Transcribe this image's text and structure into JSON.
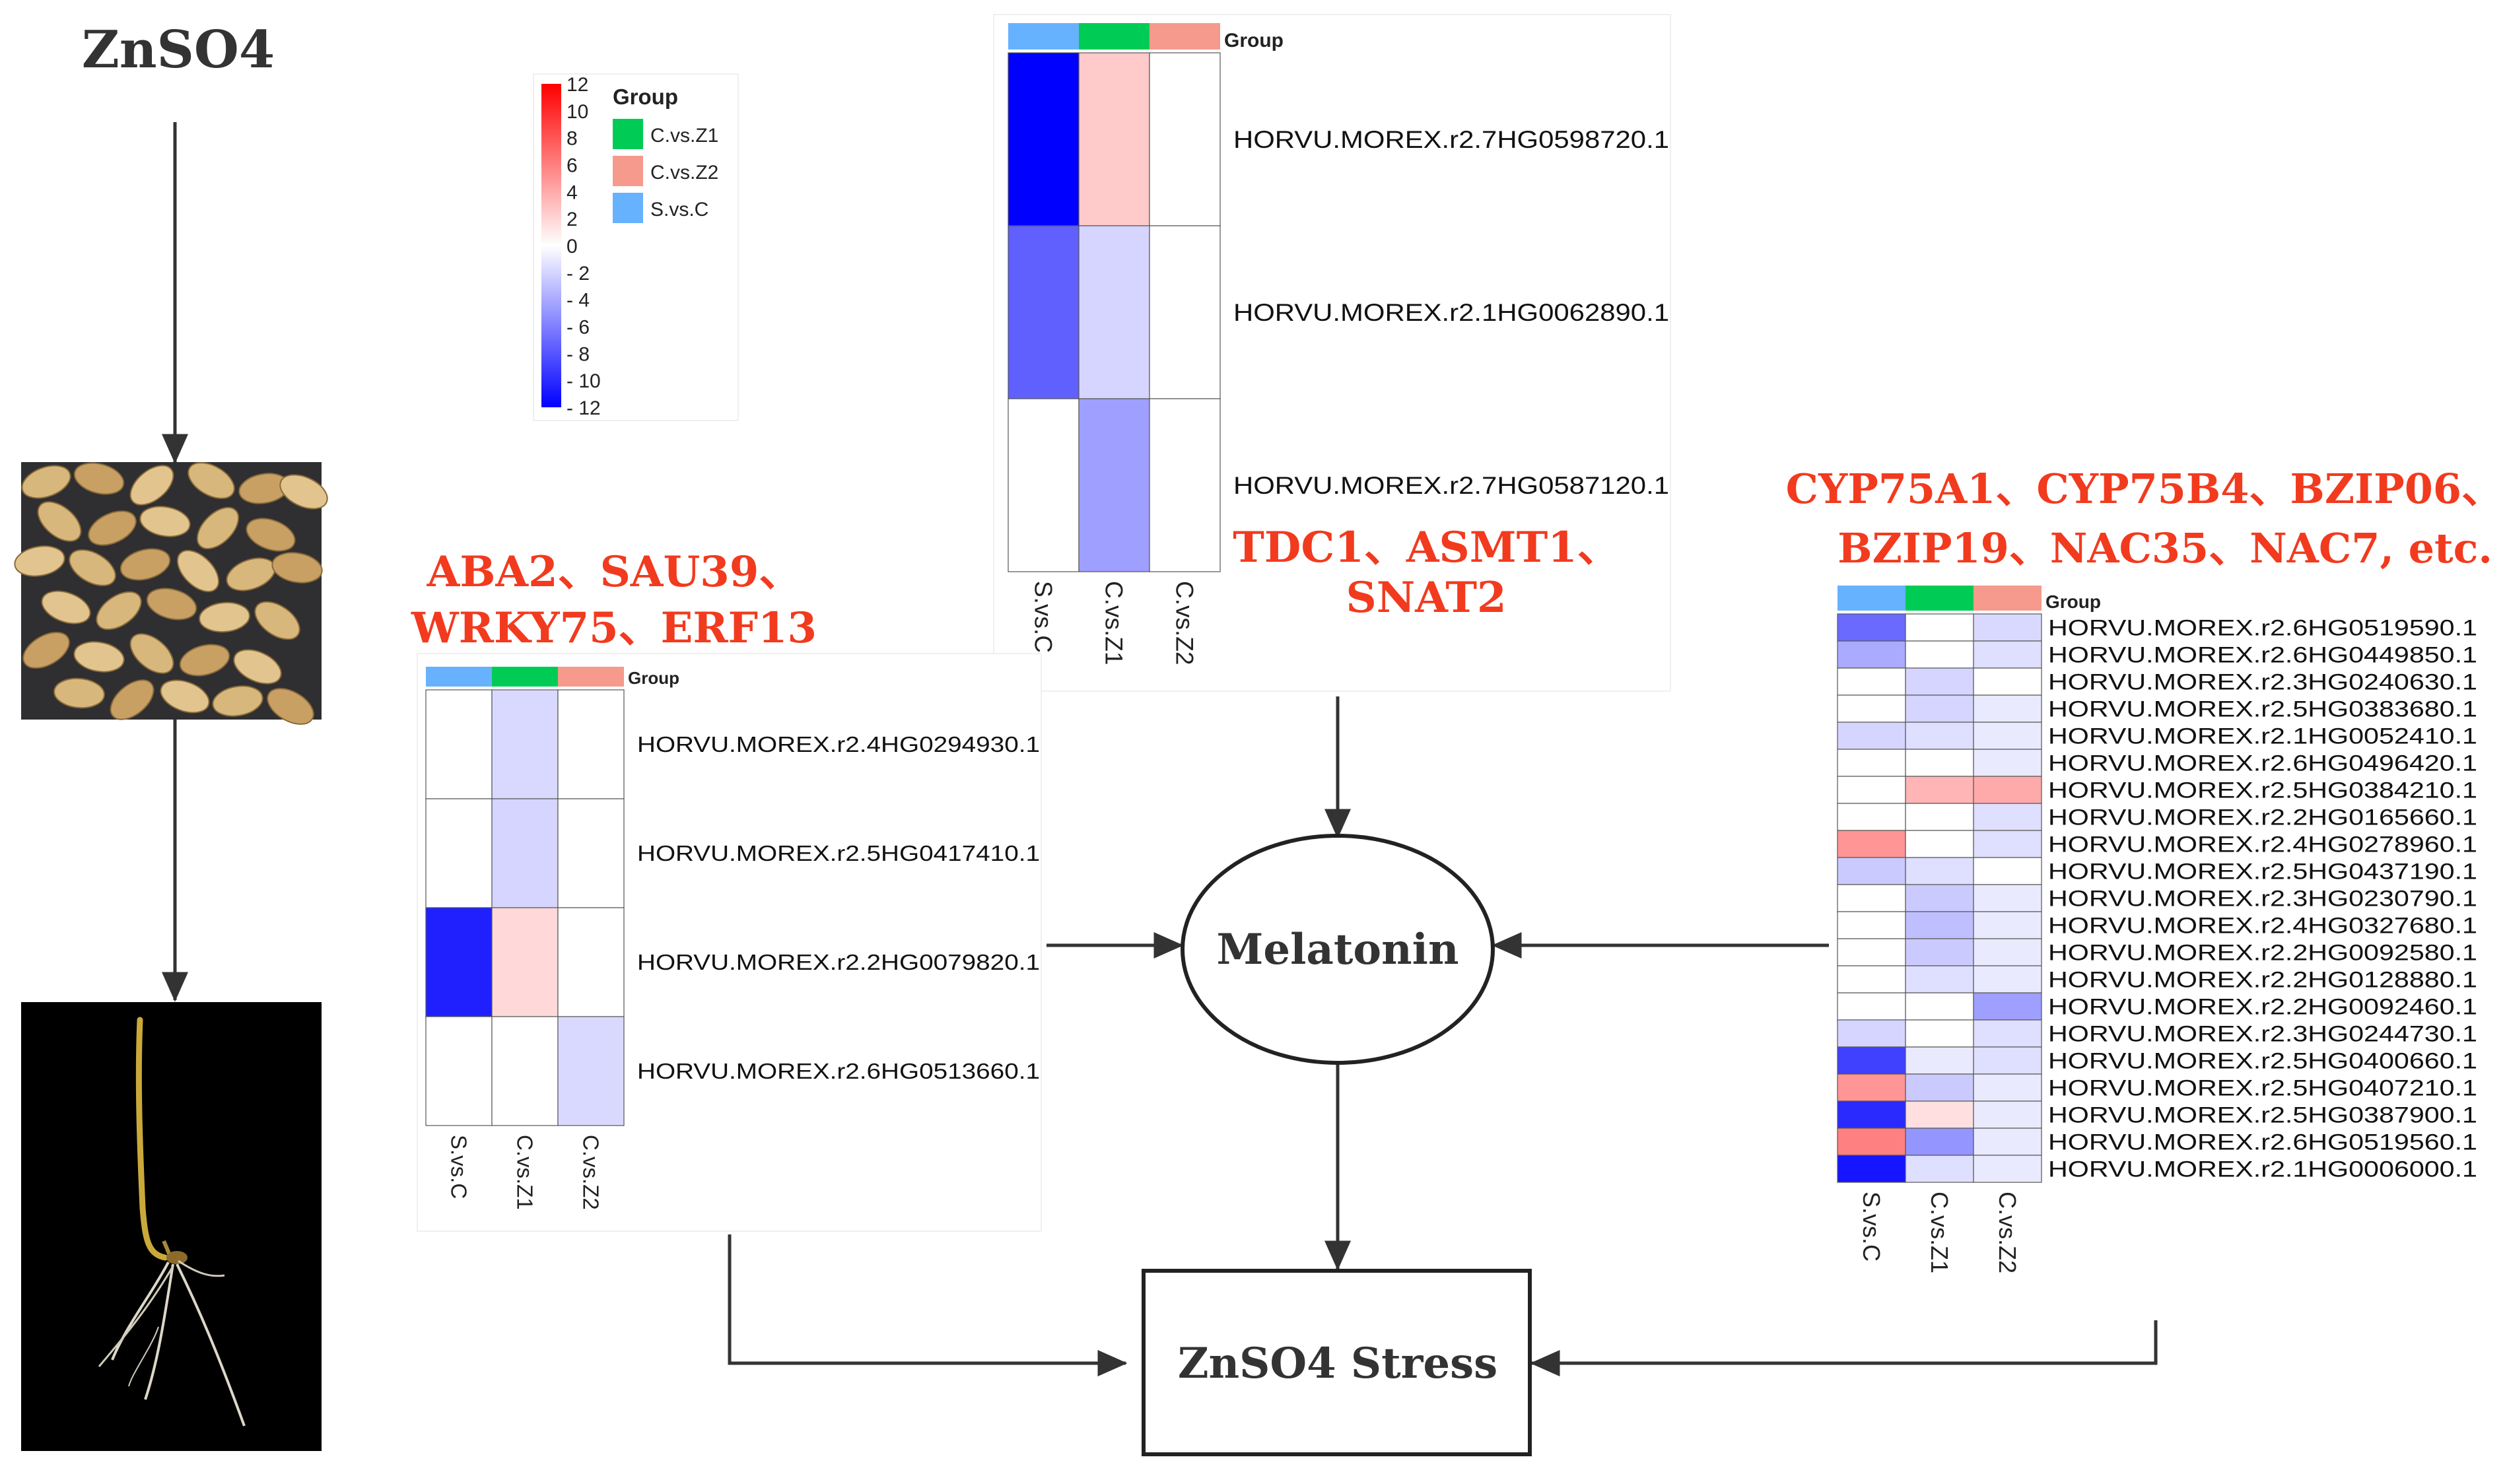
{
  "left_title": "ZnSO4",
  "colors": {
    "arrow": "#333333",
    "title_red": "#f23a1e",
    "s_vs_c": "#66b2ff",
    "c_vs_z1": "#00cc55",
    "c_vs_z2": "#f59a8c"
  },
  "legend": {
    "scale_labels": [
      "12",
      "10",
      "8",
      "6",
      "4",
      "2",
      "0",
      "- 2",
      "- 4",
      "- 6",
      "- 8",
      "- 10",
      "- 12"
    ],
    "title": "Group",
    "items": [
      {
        "label": "C.vs.Z1",
        "color_key": "c_vs_z1"
      },
      {
        "label": "C.vs.Z2",
        "color_key": "c_vs_z2"
      },
      {
        "label": "S.vs.C",
        "color_key": "s_vs_c"
      }
    ]
  },
  "center_nodes": {
    "melatonin": "Melatonin",
    "stress": "ZnSO4 Stress"
  },
  "gene_titles": {
    "left": [
      "ABA2、SAU39、",
      "WRKY75、ERF13"
    ],
    "top": [
      "TDC1、ASMT1、",
      "SNAT2"
    ],
    "right": [
      "CYP75A1、CYP75B4、BZIP06、",
      "BZIP19、NAC35、NAC7, etc."
    ]
  },
  "heatmaps": {
    "top": {
      "group_label": "Group",
      "columns": [
        "S.vs.C",
        "C.vs.Z1",
        "C.vs.Z2"
      ],
      "rows": [
        {
          "gene": "HORVU.MOREX.r2.7HG0598720.1",
          "values": [
            -12,
            2.5,
            0
          ]
        },
        {
          "gene": "HORVU.MOREX.r2.1HG0062890.1",
          "values": [
            -7.5,
            -2,
            0
          ]
        },
        {
          "gene": "HORVU.MOREX.r2.7HG0587120.1",
          "values": [
            0,
            -4.5,
            0
          ]
        }
      ]
    },
    "left": {
      "group_label": "Group",
      "columns": [
        "S.vs.C",
        "C.vs.Z1",
        "C.vs.Z2"
      ],
      "rows": [
        {
          "gene": "HORVU.MOREX.r2.4HG0294930.1",
          "values": [
            0,
            -1.8,
            0
          ]
        },
        {
          "gene": "HORVU.MOREX.r2.5HG0417410.1",
          "values": [
            0,
            -2,
            0
          ]
        },
        {
          "gene": "HORVU.MOREX.r2.2HG0079820.1",
          "values": [
            -10.5,
            1.8,
            0
          ]
        },
        {
          "gene": "HORVU.MOREX.r2.6HG0513660.1",
          "values": [
            0,
            0,
            -1.8
          ]
        }
      ]
    },
    "right": {
      "group_label": "Group",
      "columns": [
        "S.vs.C",
        "C.vs.Z1",
        "C.vs.Z2"
      ],
      "rows": [
        {
          "gene": "HORVU.MOREX.r2.6HG0519590.1",
          "values": [
            -7,
            0,
            -1.8
          ]
        },
        {
          "gene": "HORVU.MOREX.r2.6HG0449850.1",
          "values": [
            -4,
            0,
            -1.5
          ]
        },
        {
          "gene": "HORVU.MOREX.r2.3HG0240630.1",
          "values": [
            0,
            -2,
            0
          ]
        },
        {
          "gene": "HORVU.MOREX.r2.5HG0383680.1",
          "values": [
            0,
            -2,
            -1
          ]
        },
        {
          "gene": "HORVU.MOREX.r2.1HG0052410.1",
          "values": [
            -2,
            -1.5,
            -1
          ]
        },
        {
          "gene": "HORVU.MOREX.r2.6HG0496420.1",
          "values": [
            0,
            0,
            -1
          ]
        },
        {
          "gene": "HORVU.MOREX.r2.5HG0384210.1",
          "values": [
            0,
            3.5,
            4
          ]
        },
        {
          "gene": "HORVU.MOREX.r2.2HG0165660.1",
          "values": [
            0,
            0,
            -1.5
          ]
        },
        {
          "gene": "HORVU.MOREX.r2.4HG0278960.1",
          "values": [
            5,
            0,
            -1.5
          ]
        },
        {
          "gene": "HORVU.MOREX.r2.5HG0437190.1",
          "values": [
            -2.5,
            -1.5,
            0
          ]
        },
        {
          "gene": "HORVU.MOREX.r2.3HG0230790.1",
          "values": [
            0,
            -2.5,
            -1
          ]
        },
        {
          "gene": "HORVU.MOREX.r2.4HG0327680.1",
          "values": [
            0,
            -3,
            -1
          ]
        },
        {
          "gene": "HORVU.MOREX.r2.2HG0092580.1",
          "values": [
            0,
            -2.5,
            -1
          ]
        },
        {
          "gene": "HORVU.MOREX.r2.2HG0128880.1",
          "values": [
            0,
            -1.5,
            -1
          ]
        },
        {
          "gene": "HORVU.MOREX.r2.2HG0092460.1",
          "values": [
            0,
            0,
            -4.5
          ]
        },
        {
          "gene": "HORVU.MOREX.r2.3HG0244730.1",
          "values": [
            -2,
            0,
            -1.5
          ]
        },
        {
          "gene": "HORVU.MOREX.r2.5HG0400660.1",
          "values": [
            -9,
            -1,
            -1.5
          ]
        },
        {
          "gene": "HORVU.MOREX.r2.5HG0407210.1",
          "values": [
            5,
            -2.5,
            -1
          ]
        },
        {
          "gene": "HORVU.MOREX.r2.5HG0387900.1",
          "values": [
            -10,
            1.5,
            -1
          ]
        },
        {
          "gene": "HORVU.MOREX.r2.6HG0519560.1",
          "values": [
            6,
            -5,
            -1
          ]
        },
        {
          "gene": "HORVU.MOREX.r2.1HG0006000.1",
          "values": [
            -11,
            -1.5,
            -1
          ]
        }
      ]
    }
  }
}
